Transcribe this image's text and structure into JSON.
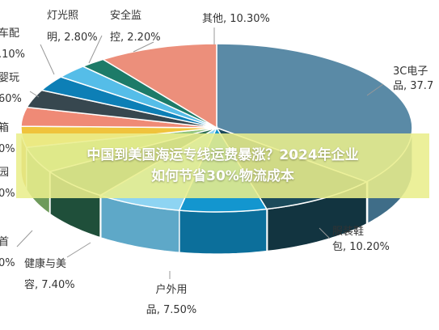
{
  "chart_data": {
    "type": "pie",
    "style": "3d",
    "slices": [
      {
        "label_lines": [
          "3C电子",
          "品, 37.7"
        ],
        "value": 37.7,
        "color": "#5a8aa6",
        "side": "#3f6d88"
      },
      {
        "label_lines": [
          "服装鞋",
          "包, 10.20%"
        ],
        "value": 10.2,
        "color": "#1b4a5a",
        "side": "#123440"
      },
      {
        "label_lines": [
          "户外用",
          "品, 7.50%"
        ],
        "value": 7.5,
        "color": "#1396cf",
        "side": "#0c6f9b"
      },
      {
        "label_lines": [
          "健康与美",
          "容, 7.40%"
        ],
        "value": 7.4,
        "color": "#8ed4f2",
        "side": "#5ea8c8"
      },
      {
        "label_lines": [
          "首",
          "0%"
        ],
        "value": 6.4,
        "color": "#2e6f52",
        "side": "#1f4f3a"
      },
      {
        "label_lines": [
          "园",
          "0%"
        ],
        "value": 5.2,
        "color": "#93c47d",
        "side": "#6e9a5b"
      },
      {
        "label_lines": [
          "箱",
          "0%"
        ],
        "value": 4.2,
        "color": "#f0c33c",
        "side": "#c49a22"
      },
      {
        "label_lines": [],
        "value": 3.8,
        "color": "#ef8a76",
        "side": "#c06555"
      },
      {
        "label_lines": [
          "婴玩",
          "60%"
        ],
        "value": 3.6,
        "color": "#37474f",
        "side": "#263238"
      },
      {
        "label_lines": [
          "车配",
          ".10%"
        ],
        "value": 3.1,
        "color": "#0d7fb6",
        "side": "#0a5e88"
      },
      {
        "label_lines": [
          "灯光照",
          "明, 2.80%"
        ],
        "value": 2.8,
        "color": "#55bde8",
        "side": "#3c93b8"
      },
      {
        "label_lines": [
          "安全监",
          "控, 2.20%"
        ],
        "value": 2.2,
        "color": "#1d7b68",
        "side": "#135a4b"
      },
      {
        "label_lines": [
          "其他, 10.30%"
        ],
        "value": 10.3,
        "color": "#ec8f7b",
        "side": "#c26c5a"
      }
    ]
  },
  "overlay": {
    "line1": "中国到美国海运专线运费暴涨？2024年企业",
    "line2": "如何节省30%物流成本"
  }
}
